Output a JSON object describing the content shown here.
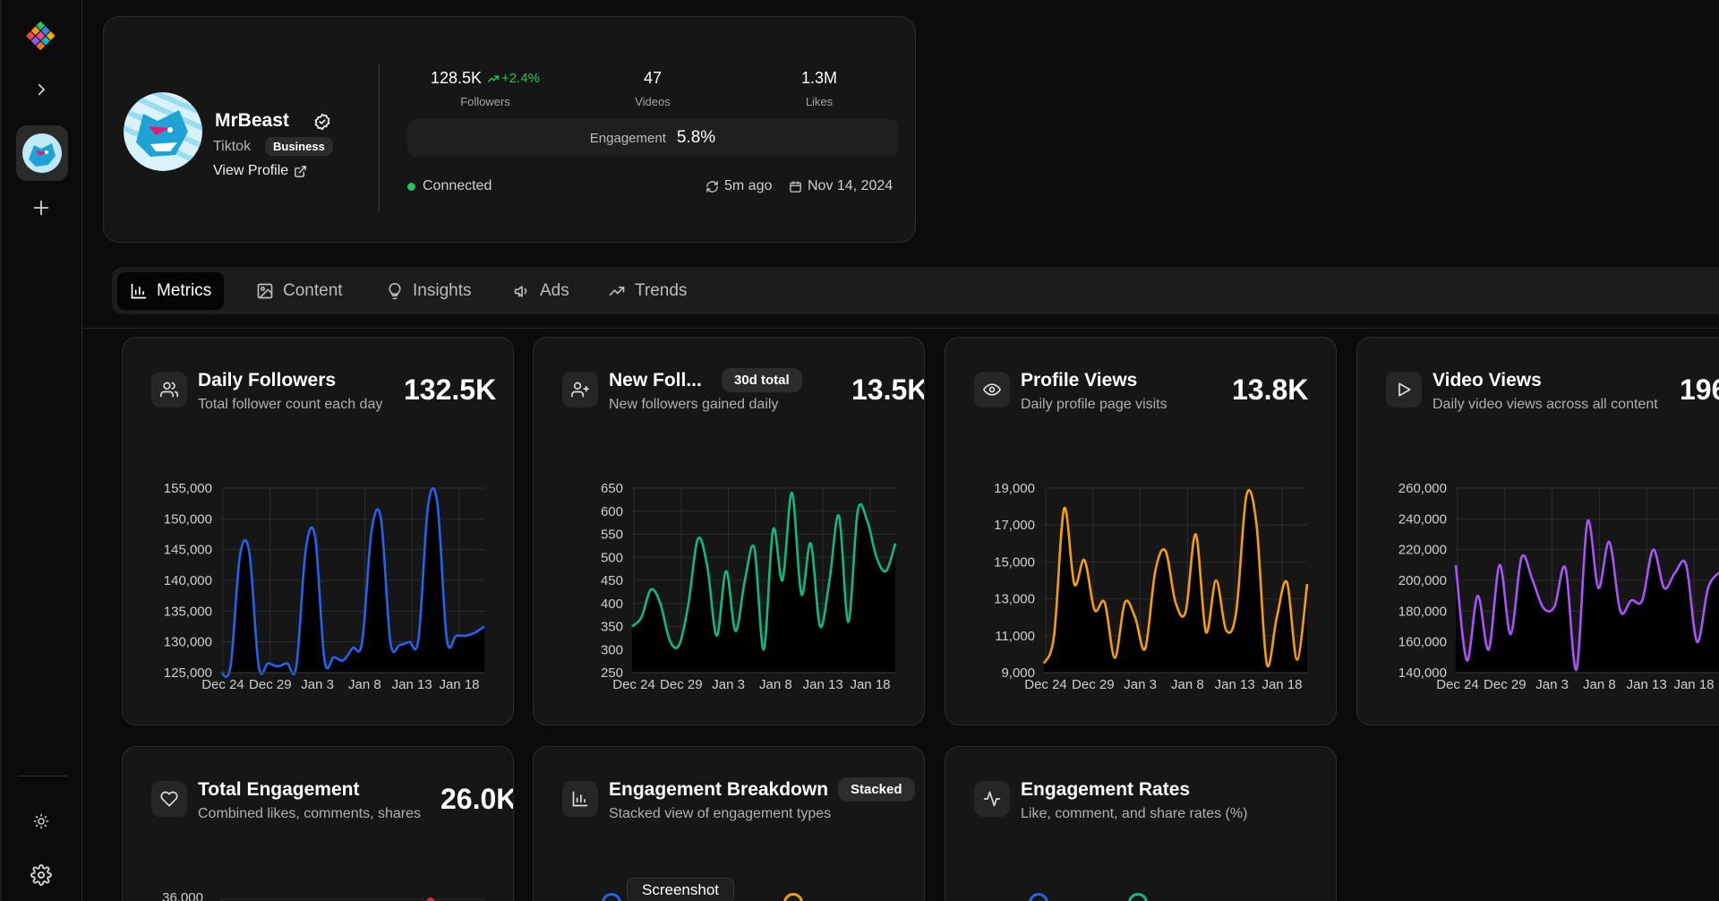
{
  "sidebar": {
    "items": [
      {
        "name": "expand"
      },
      {
        "name": "account"
      },
      {
        "name": "add"
      }
    ],
    "bottom": [
      {
        "name": "theme"
      },
      {
        "name": "settings"
      }
    ]
  },
  "profile": {
    "name": "MrBeast",
    "platform": "Tiktok",
    "account_type": "Business",
    "view_profile": "View Profile",
    "followers_value": "128.5K",
    "followers_growth": "+2.4%",
    "followers_label": "Followers",
    "videos_value": "47",
    "videos_label": "Videos",
    "likes_value": "1.3M",
    "likes_label": "Likes",
    "engagement_label": "Engagement",
    "engagement_value": "5.8%",
    "status": "Connected",
    "synced": "5m ago",
    "date": "Nov 14, 2024"
  },
  "tabs": [
    {
      "label": "Metrics",
      "icon": "bar-chart-icon",
      "active": true
    },
    {
      "label": "Content",
      "icon": "image-icon",
      "active": false
    },
    {
      "label": "Insights",
      "icon": "lightbulb-icon",
      "active": false
    },
    {
      "label": "Ads",
      "icon": "megaphone-icon",
      "active": false
    },
    {
      "label": "Trends",
      "icon": "trending-up-icon",
      "active": false
    }
  ],
  "cards": {
    "daily_followers": {
      "title": "Daily Followers",
      "subtitle": "Total follower count each day",
      "value": "132.5K",
      "icon": "users-icon"
    },
    "new_followers": {
      "title": "New Foll...",
      "subtitle": "New followers gained daily",
      "value": "13.5K",
      "badge": "30d total",
      "icon": "user-plus-icon"
    },
    "profile_views": {
      "title": "Profile Views",
      "subtitle": "Daily profile page visits",
      "value": "13.8K",
      "icon": "eye-icon"
    },
    "video_views": {
      "title": "Video Views",
      "subtitle": "Daily video views across all content",
      "value": "196",
      "icon": "play-icon"
    },
    "total_engagement": {
      "title": "Total Engagement",
      "subtitle": "Combined likes, comments, shares",
      "value": "26.0K",
      "icon": "heart-icon",
      "first_tick": "36,000"
    },
    "engagement_breakdown": {
      "title": "Engagement Breakdown",
      "subtitle": "Stacked view of engagement types",
      "badge": "Stacked",
      "icon": "bar-chart-icon"
    },
    "engagement_rates": {
      "title": "Engagement Rates",
      "subtitle": "Like, comment, and share rates (%)",
      "icon": "activity-icon"
    }
  },
  "tooltip": "Screenshot",
  "colors": {
    "blue": "#2563eb",
    "green": "#10b981",
    "orange": "#f59e0b",
    "purple": "#a855f7"
  },
  "chart_data": [
    {
      "type": "area",
      "title": "Daily Followers",
      "color": "#2563eb",
      "ylim": [
        125000,
        155000
      ],
      "yticks": [
        "155,000",
        "150,000",
        "145,000",
        "140,000",
        "135,000",
        "130,000",
        "125,000"
      ],
      "xticks": [
        "Dec 24",
        "Dec 29",
        "Jan 3",
        "Jan 8",
        "Jan 13",
        "Jan 18"
      ],
      "values": [
        125000,
        126000,
        144000,
        144500,
        126000,
        126500,
        126000,
        126500,
        126000,
        145000,
        147000,
        127000,
        127500,
        127000,
        129000,
        130000,
        148000,
        150000,
        130000,
        129500,
        130000,
        130500,
        152000,
        152500,
        130500,
        131000,
        131000,
        131500,
        132500
      ]
    },
    {
      "type": "area",
      "title": "New Followers",
      "color": "#10b981",
      "ylim": [
        250,
        650
      ],
      "yticks": [
        "650",
        "600",
        "550",
        "500",
        "450",
        "400",
        "350",
        "300",
        "250"
      ],
      "xticks": [
        "Dec 24",
        "Dec 29",
        "Jan 3",
        "Jan 8",
        "Jan 13",
        "Jan 18"
      ],
      "values": [
        350,
        370,
        430,
        400,
        320,
        310,
        400,
        540,
        480,
        330,
        470,
        340,
        450,
        520,
        300,
        560,
        450,
        640,
        420,
        530,
        350,
        450,
        590,
        360,
        600,
        580,
        500,
        470,
        530
      ]
    },
    {
      "type": "area",
      "title": "Profile Views",
      "color": "#f59e0b",
      "ylim": [
        9000,
        19000
      ],
      "yticks": [
        "19,000",
        "17,000",
        "15,000",
        "13,000",
        "11,000",
        "9,000"
      ],
      "xticks": [
        "Dec 24",
        "Dec 29",
        "Jan 3",
        "Jan 8",
        "Jan 13",
        "Jan 18"
      ],
      "values": [
        9500,
        11000,
        17900,
        13800,
        15100,
        12400,
        12800,
        9800,
        12800,
        12000,
        10300,
        14500,
        15600,
        12800,
        12300,
        16500,
        11200,
        14000,
        11300,
        12300,
        18600,
        17000,
        9500,
        12000,
        13900,
        9700,
        13800
      ]
    },
    {
      "type": "area",
      "title": "Video Views",
      "color": "#a855f7",
      "ylim": [
        140000,
        260000
      ],
      "yticks": [
        "260,000",
        "240,000",
        "220,000",
        "200,000",
        "180,000",
        "160,000",
        "140,000"
      ],
      "xticks": [
        "Dec 24",
        "Dec 29",
        "Jan 3",
        "Jan 8",
        "Jan 13",
        "Jan 18"
      ],
      "values": [
        210000,
        148000,
        190000,
        155000,
        210000,
        165000,
        215000,
        200000,
        182000,
        183000,
        208000,
        142000,
        238000,
        195000,
        225000,
        180000,
        187000,
        187000,
        220000,
        195000,
        205000,
        210000,
        160000,
        195000,
        205000
      ]
    }
  ]
}
